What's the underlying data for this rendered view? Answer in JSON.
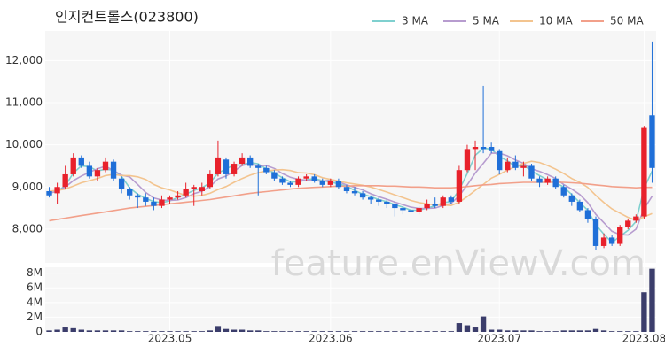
{
  "chart_data": {
    "type": "candlestick",
    "title": "인지컨트롤스(023800)",
    "watermark": "feature.enViewV.com",
    "categories": [
      null,
      null,
      null,
      null,
      null,
      null,
      null,
      null,
      null,
      null,
      null,
      null,
      null,
      null,
      null,
      "2023.05",
      null,
      null,
      null,
      null,
      null,
      null,
      null,
      null,
      null,
      null,
      null,
      null,
      null,
      null,
      null,
      null,
      null,
      null,
      null,
      "2023.06",
      null,
      null,
      null,
      null,
      null,
      null,
      null,
      null,
      null,
      null,
      null,
      null,
      null,
      null,
      null,
      null,
      null,
      null,
      null,
      null,
      "2023.07",
      null,
      null,
      null,
      null,
      null,
      null,
      null,
      null,
      null,
      null,
      null,
      null,
      null,
      null,
      null,
      null,
      null,
      "2023.08",
      null
    ],
    "open": [
      8900,
      8850,
      9000,
      9300,
      9700,
      9500,
      9250,
      9400,
      9600,
      9200,
      8950,
      8800,
      8750,
      8650,
      8550,
      8700,
      8750,
      8800,
      8950,
      8900,
      9000,
      9300,
      9650,
      9300,
      9550,
      9700,
      9500,
      9450,
      9350,
      9200,
      9100,
      9050,
      9200,
      9250,
      9150,
      9050,
      9150,
      9000,
      8900,
      8850,
      8750,
      8700,
      8650,
      8600,
      8500,
      8450,
      8400,
      8500,
      8600,
      8550,
      8750,
      8650,
      9400,
      9900,
      9950,
      9950,
      9850,
      9400,
      9600,
      9450,
      9500,
      9200,
      9100,
      9200,
      9000,
      8800,
      8650,
      8450,
      8250,
      7600,
      7800,
      7650,
      8050,
      8200,
      8300,
      10700
    ],
    "high": [
      9000,
      9100,
      9500,
      9800,
      9750,
      9600,
      9450,
      9700,
      9650,
      9250,
      9000,
      8850,
      8850,
      8750,
      8800,
      8800,
      8900,
      9100,
      9050,
      9100,
      9400,
      10100,
      9700,
      9600,
      9800,
      9750,
      9550,
      9500,
      9400,
      9250,
      9150,
      9250,
      9300,
      9300,
      9200,
      9200,
      9200,
      9050,
      9000,
      8900,
      8800,
      8750,
      8700,
      8650,
      8550,
      8500,
      8550,
      8700,
      8750,
      8800,
      8800,
      9500,
      10000,
      10100,
      11400,
      10050,
      9900,
      9700,
      9750,
      9600,
      9550,
      9250,
      9250,
      9250,
      9050,
      8850,
      8700,
      8500,
      8300,
      7900,
      7850,
      8100,
      8250,
      8350,
      10450,
      12450
    ],
    "low": [
      8750,
      8600,
      8950,
      9250,
      9450,
      9200,
      9150,
      9350,
      9150,
      8850,
      8700,
      8500,
      8550,
      8450,
      8500,
      8600,
      8700,
      8750,
      8550,
      8800,
      8950,
      9250,
      9200,
      9250,
      9500,
      9450,
      8800,
      9300,
      9150,
      9050,
      9000,
      9000,
      9150,
      9100,
      9000,
      9000,
      8950,
      8850,
      8800,
      8700,
      8600,
      8550,
      8500,
      8300,
      8350,
      8350,
      8350,
      8450,
      8500,
      8500,
      8600,
      8600,
      9350,
      9400,
      9800,
      9800,
      9300,
      9350,
      9400,
      9250,
      9150,
      9000,
      9050,
      8950,
      8750,
      8550,
      8400,
      8150,
      7500,
      7550,
      7600,
      7600,
      8000,
      8150,
      8250,
      9100
    ],
    "close": [
      8800,
      9000,
      9300,
      9700,
      9500,
      9250,
      9400,
      9600,
      9200,
      8950,
      8800,
      8750,
      8650,
      8550,
      8700,
      8750,
      8800,
      8950,
      9000,
      9000,
      9300,
      9700,
      9300,
      9550,
      9700,
      9500,
      9450,
      9350,
      9200,
      9100,
      9050,
      9200,
      9250,
      9150,
      9050,
      9150,
      9000,
      8900,
      8850,
      8750,
      8700,
      8650,
      8600,
      8500,
      8450,
      8400,
      8500,
      8600,
      8550,
      8750,
      8650,
      9400,
      9900,
      9950,
      9900,
      9850,
      9400,
      9600,
      9450,
      9500,
      9200,
      9100,
      9200,
      9000,
      8800,
      8650,
      8450,
      8250,
      7600,
      7800,
      7650,
      8050,
      8200,
      8300,
      10400,
      9450
    ],
    "up_color": "#e8212b",
    "down_color": "#1f6fd8",
    "series": [
      {
        "name": "3 MA",
        "color": "#7fd0cf",
        "values": [
          8850,
          8900,
          9030,
          9330,
          9500,
          9480,
          9380,
          9420,
          9400,
          9250,
          8980,
          8830,
          8730,
          8650,
          8630,
          8670,
          8750,
          8830,
          8920,
          8980,
          9100,
          9330,
          9430,
          9520,
          9520,
          9580,
          9550,
          9430,
          9330,
          9220,
          9120,
          9120,
          9170,
          9200,
          9150,
          9120,
          9070,
          9020,
          8920,
          8830,
          8770,
          8700,
          8650,
          8580,
          8520,
          8450,
          8450,
          8500,
          8550,
          8630,
          8650,
          8930,
          9320,
          9750,
          9920,
          9900,
          9720,
          9620,
          9480,
          9520,
          9380,
          9270,
          9170,
          9100,
          9000,
          8820,
          8630,
          8450,
          8100,
          7880,
          7680,
          7830,
          7970,
          8180,
          8970,
          9380
        ]
      },
      {
        "name": "5 MA",
        "color": "#b79ccf",
        "values": [
          8850,
          8900,
          9000,
          9150,
          9260,
          9350,
          9430,
          9490,
          9390,
          9280,
          9240,
          9060,
          8870,
          8740,
          8690,
          8680,
          8690,
          8750,
          8840,
          8900,
          9010,
          9190,
          9260,
          9370,
          9510,
          9550,
          9500,
          9510,
          9440,
          9320,
          9230,
          9180,
          9160,
          9150,
          9140,
          9160,
          9120,
          9050,
          8990,
          8930,
          8840,
          8770,
          8710,
          8640,
          8580,
          8520,
          8490,
          8490,
          8500,
          8560,
          8610,
          8790,
          9050,
          9330,
          9560,
          9800,
          9800,
          9740,
          9640,
          9560,
          9430,
          9370,
          9290,
          9200,
          9060,
          8950,
          8820,
          8630,
          8350,
          8150,
          7950,
          7870,
          7860,
          8000,
          8480,
          8780
        ]
      },
      {
        "name": "10 MA",
        "color": "#f3c48f",
        "values": [
          8900,
          8920,
          8950,
          9020,
          9100,
          9150,
          9200,
          9270,
          9300,
          9270,
          9270,
          9240,
          9180,
          9060,
          8980,
          8930,
          8860,
          8800,
          8780,
          8800,
          8850,
          8940,
          9010,
          9110,
          9200,
          9280,
          9340,
          9380,
          9400,
          9410,
          9390,
          9340,
          9330,
          9290,
          9220,
          9180,
          9140,
          9100,
          9070,
          9040,
          9000,
          8940,
          8880,
          8810,
          8750,
          8680,
          8630,
          8600,
          8570,
          8570,
          8560,
          8640,
          8770,
          8920,
          9060,
          9210,
          9300,
          9400,
          9480,
          9560,
          9610,
          9580,
          9510,
          9420,
          9320,
          9200,
          9110,
          8990,
          8800,
          8630,
          8480,
          8380,
          8280,
          8210,
          8290,
          8370
        ]
      },
      {
        "name": "50 MA",
        "color": "#f2a08a",
        "values": [
          8200,
          8230,
          8260,
          8290,
          8320,
          8350,
          8380,
          8410,
          8440,
          8470,
          8500,
          8520,
          8540,
          8560,
          8580,
          8600,
          8620,
          8640,
          8660,
          8680,
          8700,
          8730,
          8760,
          8790,
          8820,
          8850,
          8870,
          8890,
          8910,
          8930,
          8950,
          8970,
          8980,
          8990,
          9000,
          9010,
          9020,
          9020,
          9030,
          9030,
          9030,
          9030,
          9020,
          9020,
          9010,
          9000,
          9000,
          8990,
          8980,
          8980,
          8980,
          8990,
          9010,
          9030,
          9050,
          9060,
          9080,
          9090,
          9100,
          9110,
          9110,
          9110,
          9110,
          9110,
          9110,
          9100,
          9090,
          9070,
          9050,
          9030,
          9010,
          9000,
          8990,
          8980,
          8990,
          8990
        ]
      }
    ],
    "ylim": [
      7200,
      12700
    ],
    "yticks": [
      {
        "value": 8000,
        "label": "8,000"
      },
      {
        "value": 9000,
        "label": "9,000"
      },
      {
        "value": 10000,
        "label": "10,000"
      },
      {
        "value": 11000,
        "label": "11,000"
      },
      {
        "value": 12000,
        "label": "12,000"
      }
    ],
    "grid": true,
    "volume": {
      "color": "#3b3d6b",
      "values": [
        200000,
        300000,
        600000,
        500000,
        300000,
        200000,
        200000,
        200000,
        200000,
        200000,
        100000,
        100000,
        100000,
        100000,
        100000,
        100000,
        100000,
        100000,
        100000,
        100000,
        200000,
        800000,
        400000,
        300000,
        300000,
        200000,
        200000,
        100000,
        100000,
        100000,
        100000,
        100000,
        100000,
        100000,
        100000,
        100000,
        100000,
        100000,
        100000,
        100000,
        100000,
        100000,
        100000,
        100000,
        100000,
        100000,
        100000,
        100000,
        100000,
        100000,
        100000,
        1200000,
        900000,
        600000,
        2100000,
        300000,
        300000,
        200000,
        200000,
        200000,
        200000,
        100000,
        100000,
        100000,
        200000,
        200000,
        200000,
        200000,
        400000,
        200000,
        100000,
        100000,
        100000,
        100000,
        5400000,
        8600000
      ],
      "ylim": [
        0,
        8800000
      ],
      "yticks": [
        0,
        {
          "value": 2000000,
          "label": "2M"
        },
        {
          "value": 4000000,
          "label": "4M"
        },
        {
          "value": 6000000,
          "label": "6M"
        },
        {
          "value": 8000000,
          "label": "8M"
        }
      ]
    }
  }
}
